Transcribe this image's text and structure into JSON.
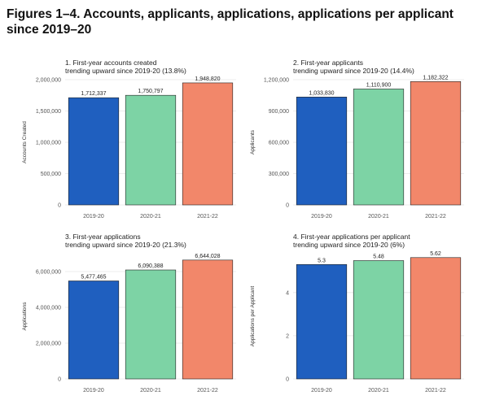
{
  "page": {
    "title": "Figures 1–4. Accounts, applicants, applications, applications per applicant since 2019–20"
  },
  "colors": {
    "bar_2019_20": "#1f5fbf",
    "bar_2020_21": "#7dd3a5",
    "bar_2021_22": "#f2876a",
    "gridline": "#e6e6e6",
    "panel_border": "#d0d0d0"
  },
  "chart_data": [
    {
      "type": "bar",
      "title": [
        "1. First-year accounts created",
        "trending upward since 2019-20 (13.8%)"
      ],
      "xlabel": "",
      "ylabel": "Accounts Created",
      "categories": [
        "2019-20",
        "2020-21",
        "2021-22"
      ],
      "values": [
        1712337,
        1750797,
        1948820
      ],
      "value_labels": [
        "1,712,337",
        "1,750,797",
        "1,948,820"
      ],
      "ylim": [
        0,
        2000000
      ],
      "yticks": [
        0,
        500000,
        1000000,
        1500000,
        2000000
      ],
      "ytick_labels": [
        "0",
        "500,000",
        "1,000,000",
        "1,500,000",
        "2,000,000"
      ],
      "grid": true,
      "legend": "none"
    },
    {
      "type": "bar",
      "title": [
        "2. First-year applicants",
        "trending upward since 2019-20 (14.4%)"
      ],
      "xlabel": "",
      "ylabel": "Applicants",
      "categories": [
        "2019-20",
        "2020-21",
        "2021-22"
      ],
      "values": [
        1033830,
        1110900,
        1182322
      ],
      "value_labels": [
        "1,033,830",
        "1,110,900",
        "1,182,322"
      ],
      "ylim": [
        0,
        1200000
      ],
      "yticks": [
        0,
        300000,
        600000,
        900000,
        1200000
      ],
      "ytick_labels": [
        "0",
        "300,000",
        "600,000",
        "900,000",
        "1,200,000"
      ],
      "grid": true,
      "legend": "none"
    },
    {
      "type": "bar",
      "title": [
        "3. First-year applications",
        "trending upward since 2019-20 (21.3%)"
      ],
      "xlabel": "",
      "ylabel": "Applications",
      "categories": [
        "2019-20",
        "2020-21",
        "2021-22"
      ],
      "values": [
        5477465,
        6090388,
        6644028
      ],
      "value_labels": [
        "5,477,465",
        "6,090,388",
        "6,644,028"
      ],
      "ylim": [
        0,
        7000000
      ],
      "yticks": [
        0,
        2000000,
        4000000,
        6000000
      ],
      "ytick_labels": [
        "0",
        "2,000,000",
        "4,000,000",
        "6,000,000"
      ],
      "grid": true,
      "legend": "none"
    },
    {
      "type": "bar",
      "title": [
        "4. First-year applications per applicant",
        "trending upward since 2019-20 (6%)"
      ],
      "xlabel": "",
      "ylabel": "Applications per Applicant",
      "categories": [
        "2019-20",
        "2020-21",
        "2021-22"
      ],
      "values": [
        5.3,
        5.48,
        5.62
      ],
      "value_labels": [
        "5.3",
        "5.48",
        "5.62"
      ],
      "ylim": [
        0,
        5.8
      ],
      "yticks": [
        0,
        2,
        4
      ],
      "ytick_labels": [
        "0",
        "2",
        "4"
      ],
      "grid": true,
      "legend": "none"
    }
  ]
}
